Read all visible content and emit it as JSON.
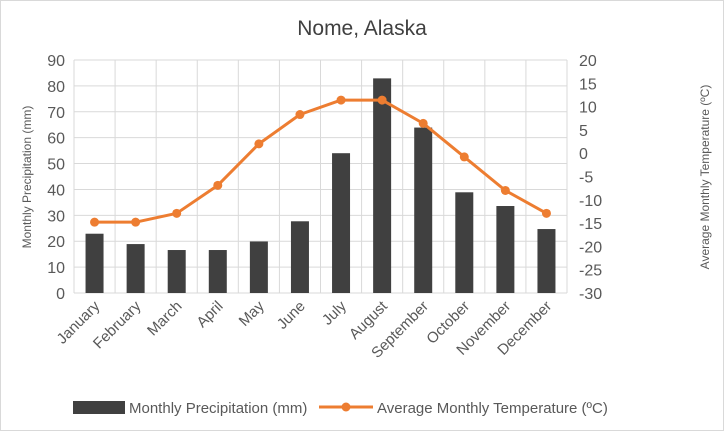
{
  "chart_data": {
    "type": "bar+line",
    "title": "Nome, Alaska",
    "categories": [
      "January",
      "February",
      "March",
      "April",
      "May",
      "June",
      "July",
      "August",
      "September",
      "October",
      "November",
      "December"
    ],
    "series": [
      {
        "name": "Monthly Precipitation  (mm)",
        "type": "bar",
        "axis": "left",
        "color": "#404040",
        "values": [
          22.9,
          18.9,
          16.6,
          16.6,
          19.9,
          27.7,
          54,
          82.9,
          63.9,
          38.9,
          33.6,
          24.7
        ]
      },
      {
        "name": "Average Monthly  Temperature (ºC)",
        "type": "line",
        "axis": "right",
        "color": "#ED7D31",
        "values": [
          -14.8,
          -14.8,
          -12.9,
          -6.9,
          2,
          8.3,
          11.4,
          11.4,
          6.4,
          -0.8,
          -8,
          -12.9
        ]
      }
    ],
    "ylabel": "Monthly Precipitation  (mm)",
    "y2label": "Average Monthly  Temperature (ºC)",
    "ylim": [
      0,
      90
    ],
    "yticks": [
      0,
      10,
      20,
      30,
      40,
      50,
      60,
      70,
      80,
      90
    ],
    "y2lim": [
      -30,
      20
    ],
    "y2ticks": [
      -30,
      -25,
      -20,
      -15,
      -10,
      -5,
      0,
      5,
      10,
      15,
      20
    ],
    "grid": true,
    "legend_position": "bottom"
  }
}
